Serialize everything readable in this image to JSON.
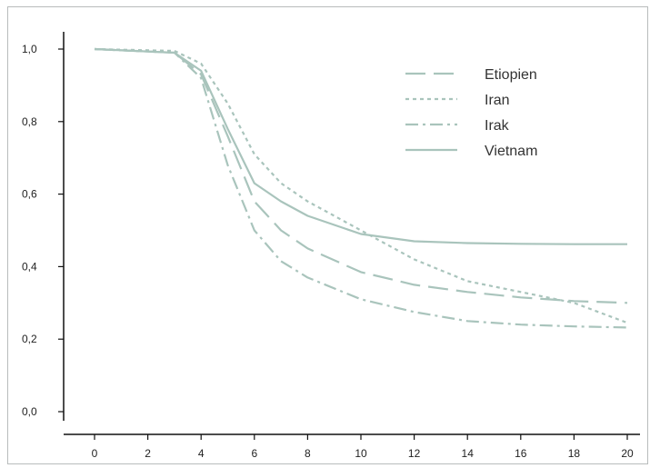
{
  "chart_data": {
    "type": "line",
    "title": "",
    "xlabel": "",
    "ylabel": "",
    "xlim": [
      0,
      20
    ],
    "ylim": [
      0,
      1
    ],
    "x_ticks": [
      "0",
      "2",
      "4",
      "6",
      "8",
      "10",
      "12",
      "14",
      "16",
      "18",
      "20"
    ],
    "y_ticks": [
      "0,0",
      "0,2",
      "0,4",
      "0,6",
      "0,8",
      "1,0"
    ],
    "grid": false,
    "legend_position": "top-right",
    "line_color": "#a9c4bc",
    "series": [
      {
        "name": "Etiopien",
        "style": "long-dash",
        "points": [
          [
            0,
            1.0
          ],
          [
            3,
            0.99
          ],
          [
            4,
            0.93
          ],
          [
            5,
            0.76
          ],
          [
            6,
            0.58
          ],
          [
            7,
            0.5
          ],
          [
            8,
            0.45
          ],
          [
            10,
            0.385
          ],
          [
            12,
            0.35
          ],
          [
            14,
            0.33
          ],
          [
            16,
            0.315
          ],
          [
            18,
            0.305
          ],
          [
            20,
            0.3
          ]
        ]
      },
      {
        "name": "Iran",
        "style": "dotted",
        "points": [
          [
            0,
            1.0
          ],
          [
            3,
            0.995
          ],
          [
            4,
            0.96
          ],
          [
            5,
            0.85
          ],
          [
            6,
            0.71
          ],
          [
            7,
            0.63
          ],
          [
            8,
            0.58
          ],
          [
            10,
            0.5
          ],
          [
            12,
            0.42
          ],
          [
            14,
            0.36
          ],
          [
            16,
            0.33
          ],
          [
            18,
            0.3
          ],
          [
            20,
            0.245
          ]
        ]
      },
      {
        "name": "Irak",
        "style": "dash-dot",
        "points": [
          [
            0,
            1.0
          ],
          [
            3,
            0.99
          ],
          [
            4,
            0.92
          ],
          [
            5,
            0.68
          ],
          [
            6,
            0.5
          ],
          [
            7,
            0.415
          ],
          [
            8,
            0.37
          ],
          [
            10,
            0.31
          ],
          [
            12,
            0.275
          ],
          [
            14,
            0.25
          ],
          [
            16,
            0.24
          ],
          [
            18,
            0.235
          ],
          [
            20,
            0.232
          ]
        ]
      },
      {
        "name": "Vietnam",
        "style": "solid",
        "points": [
          [
            0,
            1.0
          ],
          [
            3,
            0.99
          ],
          [
            4,
            0.94
          ],
          [
            5,
            0.78
          ],
          [
            6,
            0.63
          ],
          [
            7,
            0.58
          ],
          [
            8,
            0.54
          ],
          [
            10,
            0.49
          ],
          [
            12,
            0.47
          ],
          [
            14,
            0.465
          ],
          [
            16,
            0.463
          ],
          [
            18,
            0.462
          ],
          [
            20,
            0.462
          ]
        ]
      }
    ]
  }
}
